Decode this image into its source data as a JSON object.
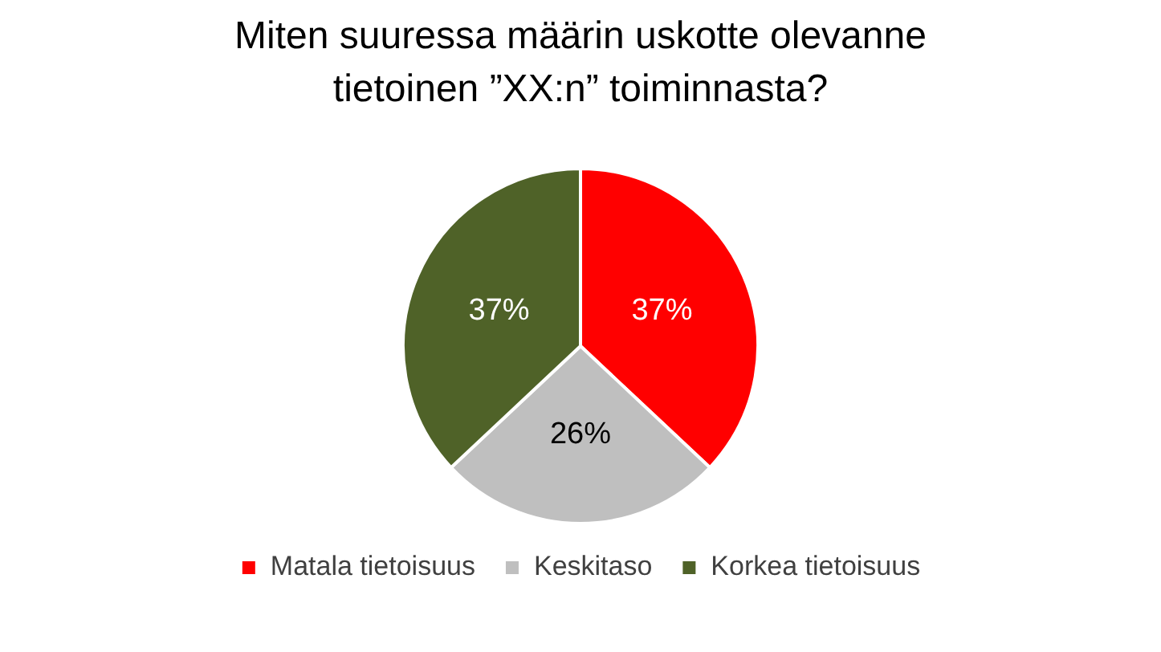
{
  "chart_data": {
    "type": "pie",
    "title": "Miten suuressa määrin uskotte olevanne tietoinen ”XX:n” toiminnasta?",
    "categories": [
      "Matala tietoisuus",
      "Keskitaso",
      "Korkea tietoisuus"
    ],
    "values": [
      37,
      26,
      37
    ],
    "colors": [
      "#ff0000",
      "#bfbfbf",
      "#4f6228"
    ],
    "value_labels": [
      "37%",
      "26%",
      "37%"
    ],
    "legend": "bottom"
  }
}
